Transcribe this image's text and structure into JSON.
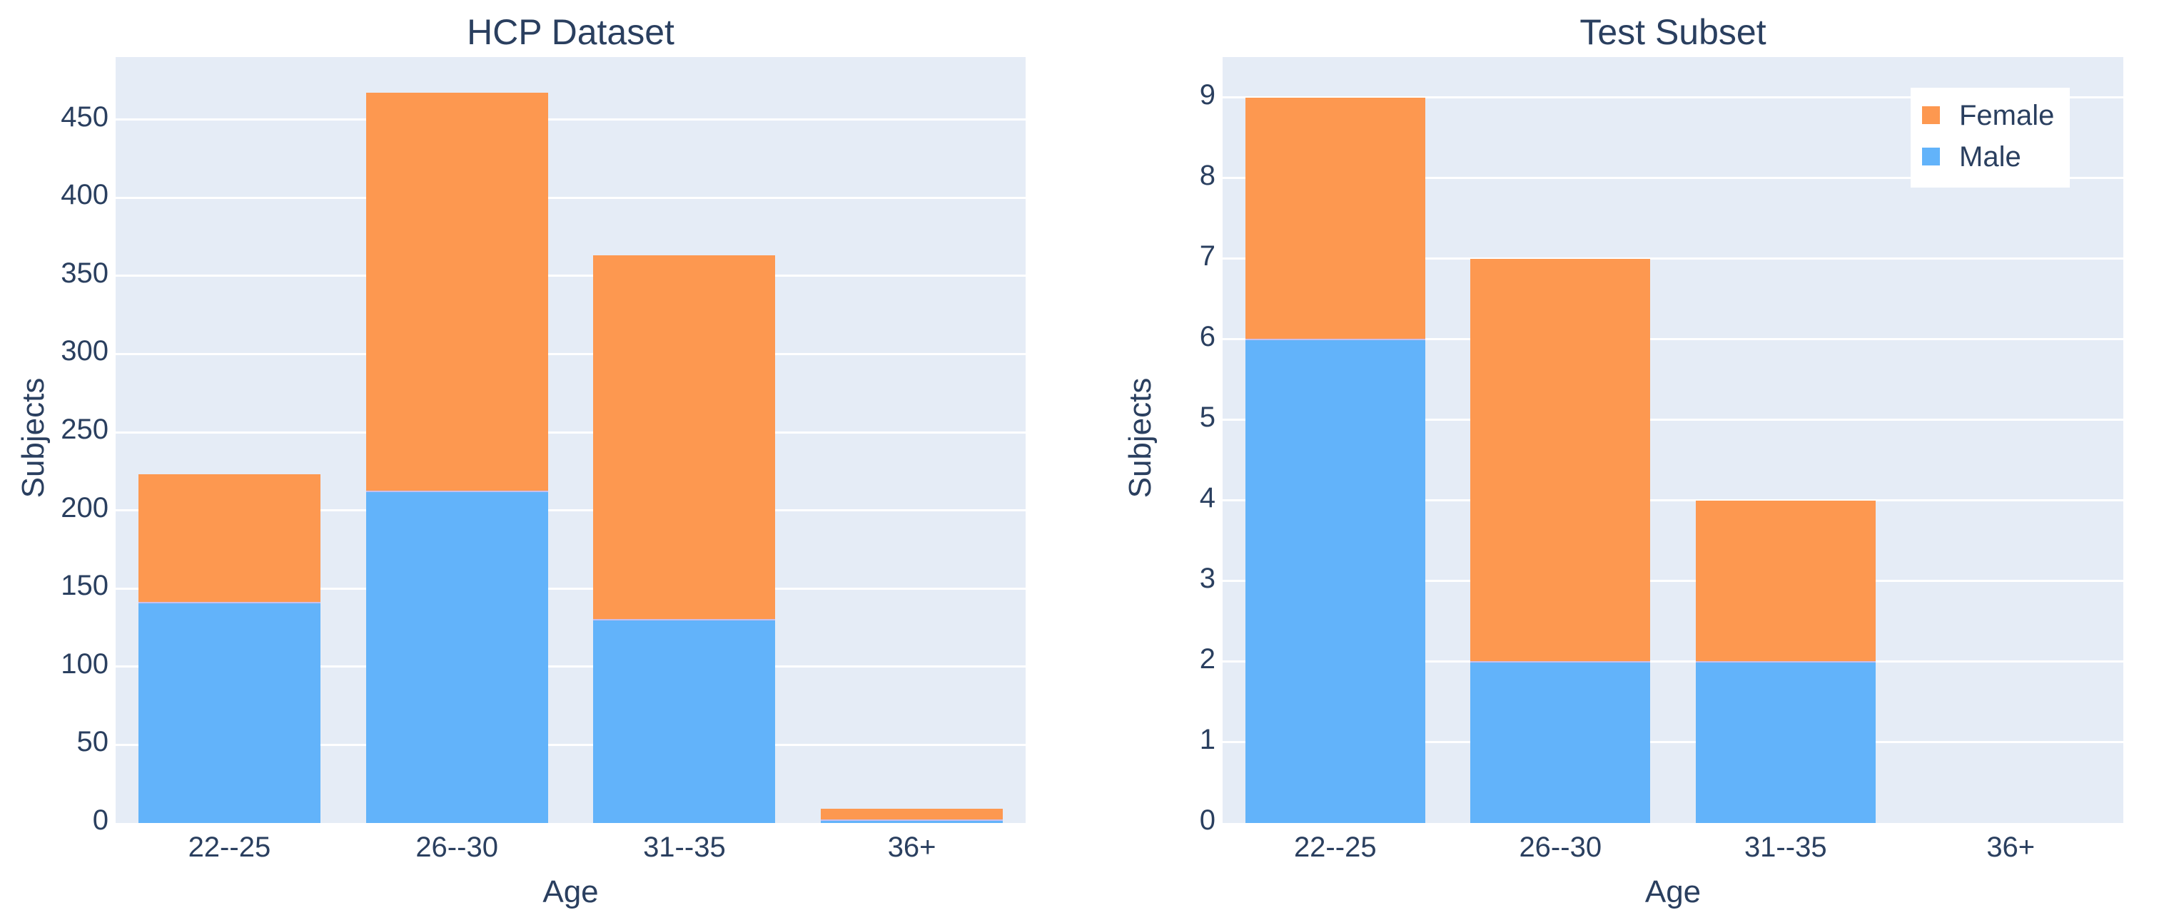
{
  "figure": {
    "background": "#ffffff",
    "plot_background": "#e5ecf6",
    "grid_color": "#ffffff",
    "text_color": "#2a3f5f"
  },
  "colors": {
    "female": "#fd9850",
    "male": "#62b3fa"
  },
  "legend": {
    "position": "top-right-inside-second-chart",
    "items": [
      {
        "label": "Female",
        "color": "#fd9850"
      },
      {
        "label": "Male",
        "color": "#62b3fa"
      }
    ]
  },
  "chart_data": [
    {
      "type": "bar",
      "stacked": true,
      "title": "HCP Dataset",
      "xlabel": "Age",
      "ylabel": "Subjects",
      "categories": [
        "22--25",
        "26--30",
        "31--35",
        "36+"
      ],
      "series": [
        {
          "name": "Male",
          "color": "#62b3fa",
          "values": [
            141,
            212,
            130,
            2
          ]
        },
        {
          "name": "Female",
          "color": "#fd9850",
          "values": [
            82,
            255,
            233,
            7
          ]
        }
      ],
      "stack_totals": [
        223,
        467,
        363,
        9
      ],
      "ylim": [
        0,
        490
      ],
      "yticks": [
        0,
        50,
        100,
        150,
        200,
        250,
        300,
        350,
        400,
        450
      ],
      "ytick_labels": [
        "0",
        "50",
        "100",
        "150",
        "200",
        "250",
        "300",
        "350",
        "400",
        "450"
      ],
      "grid": true,
      "show_legend": false
    },
    {
      "type": "bar",
      "stacked": true,
      "title": "Test Subset",
      "xlabel": "Age",
      "ylabel": "Subjects",
      "categories": [
        "22--25",
        "26--30",
        "31--35",
        "36+"
      ],
      "series": [
        {
          "name": "Male",
          "color": "#62b3fa",
          "values": [
            6,
            2,
            2,
            0
          ]
        },
        {
          "name": "Female",
          "color": "#fd9850",
          "values": [
            3,
            5,
            2,
            0
          ]
        }
      ],
      "stack_totals": [
        9,
        7,
        4,
        0
      ],
      "ylim": [
        0,
        9.5
      ],
      "yticks": [
        0,
        1,
        2,
        3,
        4,
        5,
        6,
        7,
        8,
        9
      ],
      "ytick_labels": [
        "0",
        "1",
        "2",
        "3",
        "4",
        "5",
        "6",
        "7",
        "8",
        "9"
      ],
      "grid": true,
      "show_legend": true
    }
  ]
}
